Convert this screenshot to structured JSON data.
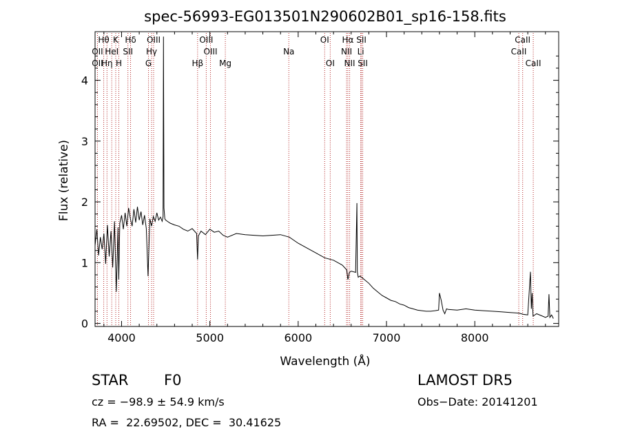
{
  "chart_data": {
    "type": "line",
    "title": "spec-56993-EG013501N290602B01_sp16-158.fits",
    "xlabel": "Wavelength (Å)",
    "ylabel": "Flux (relative)",
    "xlim": [
      3700,
      8950
    ],
    "ylim": [
      -0.05,
      4.8
    ],
    "xticks": [
      4000,
      5000,
      6000,
      7000,
      8000
    ],
    "xtick_labels": [
      "4000",
      "5000",
      "6000",
      "7000",
      "8000"
    ],
    "yticks": [
      0,
      1,
      2,
      3,
      4
    ],
    "ytick_labels": [
      "0",
      "1",
      "2",
      "3",
      "4"
    ],
    "grid": false,
    "line_color": "#000000",
    "marker_color": "#b22222",
    "spectrum": {
      "x": [
        3700,
        3720,
        3740,
        3760,
        3780,
        3800,
        3820,
        3840,
        3860,
        3880,
        3900,
        3920,
        3940,
        3960,
        3968,
        3980,
        4000,
        4020,
        4040,
        4060,
        4080,
        4100,
        4120,
        4140,
        4160,
        4180,
        4200,
        4220,
        4240,
        4260,
        4280,
        4300,
        4320,
        4340,
        4360,
        4380,
        4400,
        4420,
        4440,
        4460,
        4470,
        4475,
        4480,
        4490,
        4500,
        4550,
        4600,
        4650,
        4700,
        4750,
        4800,
        4850,
        4861,
        4870,
        4900,
        4950,
        5000,
        5050,
        5100,
        5150,
        5200,
        5300,
        5400,
        5500,
        5600,
        5700,
        5800,
        5900,
        6000,
        6100,
        6200,
        6300,
        6400,
        6500,
        6550,
        6563,
        6580,
        6600,
        6650,
        6665,
        6670,
        6680,
        6700,
        6750,
        6800,
        6850,
        6900,
        6950,
        7000,
        7050,
        7100,
        7150,
        7200,
        7250,
        7300,
        7350,
        7400,
        7450,
        7500,
        7550,
        7590,
        7600,
        7620,
        7640,
        7660,
        7680,
        7700,
        7800,
        7900,
        8000,
        8100,
        8200,
        8300,
        8400,
        8500,
        8550,
        8600,
        8630,
        8640,
        8650,
        8660,
        8700,
        8750,
        8800,
        8830,
        8840,
        8850,
        8870,
        8890
      ],
      "y": [
        1.28,
        1.55,
        1.12,
        1.42,
        1.22,
        1.48,
        0.98,
        1.62,
        1.1,
        1.52,
        0.92,
        1.68,
        0.52,
        1.58,
        0.72,
        1.65,
        1.78,
        1.55,
        1.82,
        1.6,
        1.9,
        1.72,
        1.6,
        1.88,
        1.66,
        1.92,
        1.7,
        1.84,
        1.62,
        1.78,
        1.56,
        0.78,
        1.72,
        1.6,
        1.76,
        1.68,
        1.82,
        1.7,
        1.75,
        1.68,
        1.76,
        4.72,
        1.9,
        1.72,
        1.7,
        1.65,
        1.62,
        1.6,
        1.55,
        1.52,
        1.56,
        1.48,
        1.05,
        1.44,
        1.52,
        1.46,
        1.55,
        1.5,
        1.52,
        1.45,
        1.42,
        1.48,
        1.46,
        1.45,
        1.44,
        1.45,
        1.46,
        1.42,
        1.32,
        1.24,
        1.16,
        1.08,
        1.04,
        0.96,
        0.88,
        0.72,
        0.84,
        0.86,
        0.84,
        1.98,
        0.85,
        0.76,
        0.78,
        0.72,
        0.66,
        0.58,
        0.52,
        0.46,
        0.42,
        0.38,
        0.36,
        0.32,
        0.3,
        0.26,
        0.24,
        0.22,
        0.21,
        0.2,
        0.2,
        0.21,
        0.22,
        0.5,
        0.38,
        0.22,
        0.16,
        0.24,
        0.23,
        0.22,
        0.24,
        0.22,
        0.21,
        0.2,
        0.19,
        0.18,
        0.17,
        0.15,
        0.14,
        0.85,
        0.24,
        0.5,
        0.12,
        0.16,
        0.13,
        0.1,
        0.12,
        0.48,
        0.1,
        0.14,
        0.08
      ]
    },
    "lines": [
      {
        "label": "Hθ",
        "x": 3798,
        "row": 0
      },
      {
        "label": "OII",
        "x": 3727,
        "row": 1
      },
      {
        "label": "OII",
        "x": 3727,
        "row": 2
      },
      {
        "label": "Hη",
        "x": 3835,
        "row": 2
      },
      {
        "label": "K",
        "x": 3934,
        "row": 0
      },
      {
        "label": "HeI",
        "x": 3889,
        "row": 1
      },
      {
        "label": "H",
        "x": 3969,
        "row": 2
      },
      {
        "label": "Hδ",
        "x": 4102,
        "row": 0
      },
      {
        "label": "SII",
        "x": 4072,
        "row": 1
      },
      {
        "label": "OIII",
        "x": 4363,
        "row": 0
      },
      {
        "label": "Hγ",
        "x": 4340,
        "row": 1
      },
      {
        "label": "G",
        "x": 4305,
        "row": 2
      },
      {
        "label": "OIII",
        "x": 4959,
        "row": 0
      },
      {
        "label": "OIII",
        "x": 5007,
        "row": 1
      },
      {
        "label": "Hβ",
        "x": 4861,
        "row": 2
      },
      {
        "label": "Mg",
        "x": 5175,
        "row": 2
      },
      {
        "label": "Na",
        "x": 5894,
        "row": 1
      },
      {
        "label": "OI",
        "x": 6300,
        "row": 0
      },
      {
        "label": "OI",
        "x": 6363,
        "row": 2
      },
      {
        "label": "Hα",
        "x": 6563,
        "row": 0
      },
      {
        "label": "SII",
        "x": 6716,
        "row": 0
      },
      {
        "label": "NII",
        "x": 6548,
        "row": 1
      },
      {
        "label": "Li",
        "x": 6708,
        "row": 1
      },
      {
        "label": "NII",
        "x": 6583,
        "row": 2
      },
      {
        "label": "SII",
        "x": 6731,
        "row": 2
      },
      {
        "label": "CaII",
        "x": 8542,
        "row": 0
      },
      {
        "label": "CaII",
        "x": 8498,
        "row": 1
      },
      {
        "label": "CaII",
        "x": 8662,
        "row": 2
      }
    ]
  },
  "info": {
    "class": "STAR",
    "subclass": "F0",
    "survey": "LAMOST DR5",
    "cz": "cz = −98.9 ± 54.9 km/s",
    "obs_date": "Obs−Date: 20141201",
    "coords": "RA =  22.69502, DEC =  30.41625"
  }
}
